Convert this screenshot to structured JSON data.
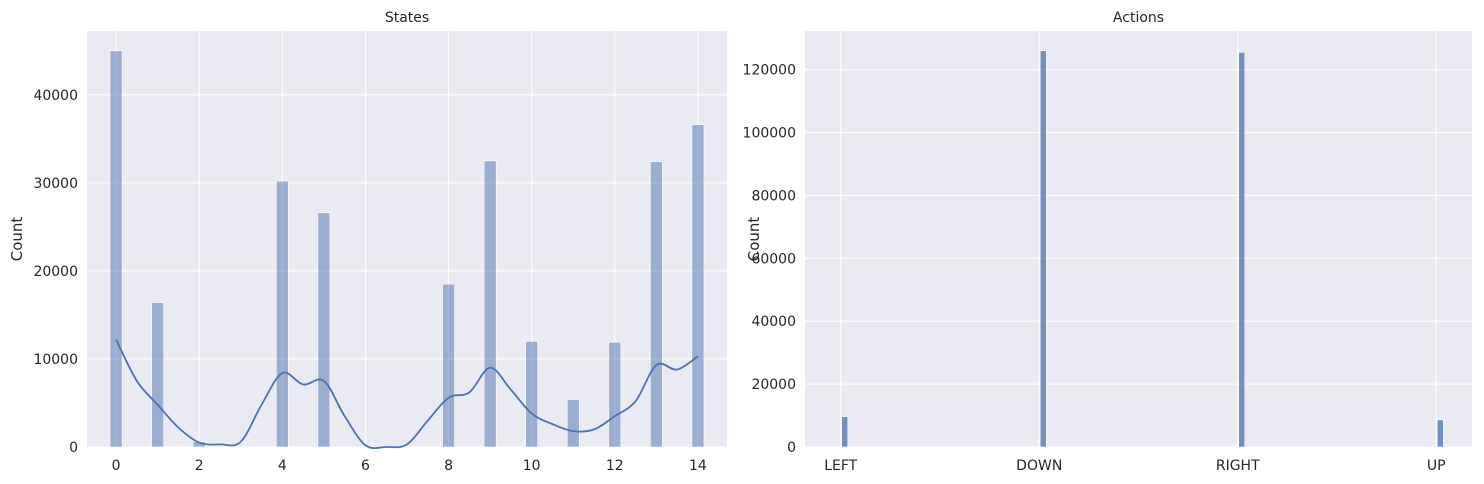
{
  "chart_data": [
    {
      "type": "bar",
      "title": "States",
      "xlabel": "",
      "ylabel": "Count",
      "xlim": [
        -0.7,
        14.7
      ],
      "ylim": [
        0,
        47250
      ],
      "xticks": [
        0,
        2,
        4,
        6,
        8,
        10,
        12,
        14
      ],
      "yticks": [
        0,
        10000,
        20000,
        30000,
        40000
      ],
      "grid": true,
      "bar_color": "#4c72b0",
      "bars": [
        {
          "x": 0,
          "y": 45000
        },
        {
          "x": 1,
          "y": 16400
        },
        {
          "x": 2,
          "y": 600
        },
        {
          "x": 4,
          "y": 30200
        },
        {
          "x": 5,
          "y": 26600
        },
        {
          "x": 8,
          "y": 18500
        },
        {
          "x": 9,
          "y": 32500
        },
        {
          "x": 10,
          "y": 12000
        },
        {
          "x": 11,
          "y": 5400
        },
        {
          "x": 12,
          "y": 11900
        },
        {
          "x": 13,
          "y": 32400
        },
        {
          "x": 14,
          "y": 36600
        }
      ],
      "kde": {
        "color": "#4c72b0",
        "x": [
          0,
          0.5,
          1,
          1.5,
          2,
          2.5,
          3,
          3.5,
          4,
          4.5,
          5,
          5.5,
          6,
          6.5,
          7,
          7.5,
          8,
          8.5,
          9,
          9.5,
          10,
          10.5,
          11,
          11.5,
          12,
          12.5,
          13,
          13.5,
          14
        ],
        "y": [
          12200,
          7500,
          4800,
          2200,
          500,
          300,
          600,
          4800,
          8400,
          7100,
          7500,
          3500,
          200,
          0,
          300,
          3000,
          5600,
          6200,
          9000,
          6500,
          3800,
          2600,
          1800,
          2000,
          3500,
          5200,
          9300,
          8800,
          10300
        ]
      }
    },
    {
      "type": "bar",
      "title": "Actions",
      "xlabel": "",
      "ylabel": "Count",
      "categories": [
        "LEFT",
        "DOWN",
        "RIGHT",
        "UP"
      ],
      "values": [
        9600,
        126000,
        125500,
        8600
      ],
      "ylim": [
        0,
        132300
      ],
      "yticks": [
        0,
        20000,
        40000,
        60000,
        80000,
        100000,
        120000
      ],
      "grid": true,
      "bar_color": "#4c72b0"
    }
  ]
}
